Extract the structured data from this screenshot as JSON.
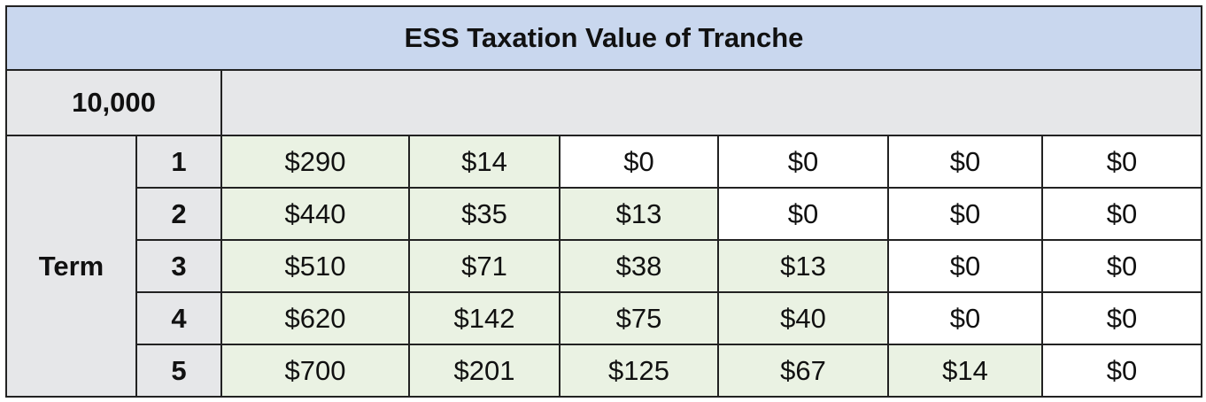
{
  "table": {
    "title": "ESS Taxation Value of Tranche",
    "quantity": "10,000",
    "row_header": "Term",
    "rows": [
      {
        "term": 1,
        "values": [
          "$290",
          "$14",
          "$0",
          "$0",
          "$0",
          "$0"
        ]
      },
      {
        "term": 2,
        "values": [
          "$440",
          "$35",
          "$13",
          "$0",
          "$0",
          "$0"
        ]
      },
      {
        "term": 3,
        "values": [
          "$510",
          "$71",
          "$38",
          "$13",
          "$0",
          "$0"
        ]
      },
      {
        "term": 4,
        "values": [
          "$620",
          "$142",
          "$75",
          "$40",
          "$0",
          "$0"
        ]
      },
      {
        "term": 5,
        "values": [
          "$700",
          "$201",
          "$125",
          "$67",
          "$14",
          "$0"
        ]
      }
    ]
  }
}
